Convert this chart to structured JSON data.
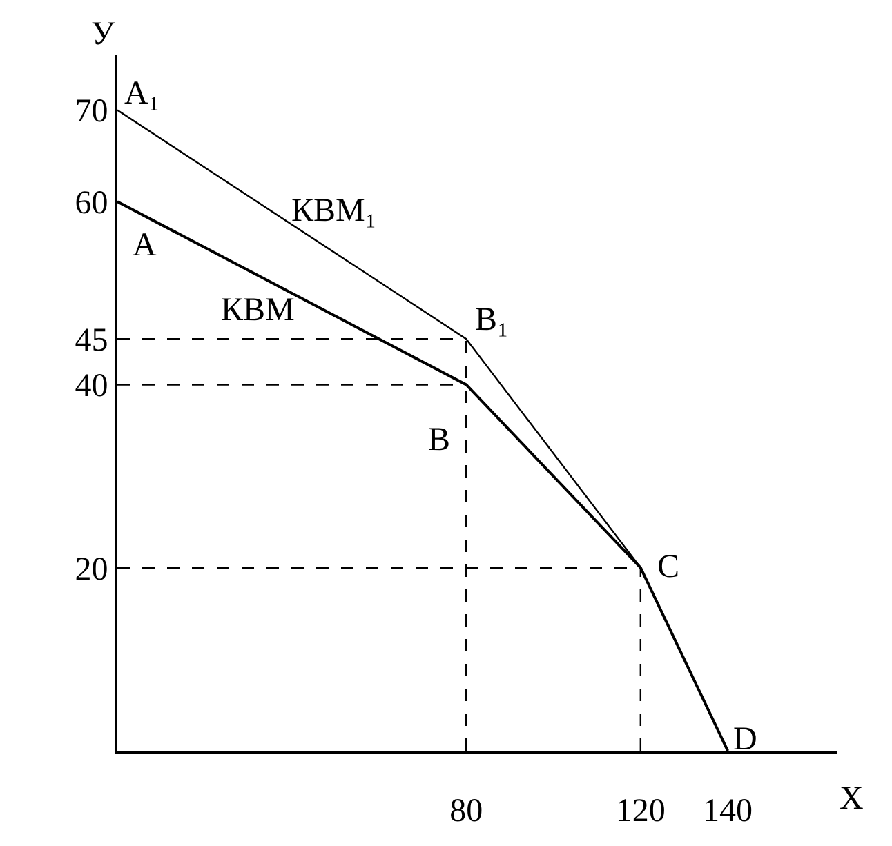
{
  "chart_data": {
    "type": "line",
    "xlabel": "X",
    "ylabel": "У",
    "xlim": [
      0,
      165
    ],
    "ylim": [
      0,
      76
    ],
    "xticks": [
      80,
      120,
      140
    ],
    "yticks": [
      20,
      40,
      45,
      60,
      70
    ],
    "legend": false,
    "marker": "none",
    "series": [
      {
        "name": "КВМ",
        "color": "#000000",
        "x": [
          0,
          80,
          120,
          140
        ],
        "values": [
          60,
          40,
          20,
          0
        ],
        "line_style": "solid"
      },
      {
        "name": "КВМ₁",
        "color": "#000000",
        "x": [
          0,
          80,
          120,
          140
        ],
        "values": [
          70,
          45,
          20,
          0
        ],
        "line_style": "solid"
      },
      {
        "color": "#000000",
        "x": [
          0,
          80
        ],
        "values": [
          45,
          45
        ],
        "line_style": "dashed"
      },
      {
        "color": "#000000",
        "x": [
          0,
          80
        ],
        "values": [
          40,
          40
        ],
        "line_style": "dashed"
      },
      {
        "color": "#000000",
        "x": [
          0,
          120
        ],
        "values": [
          20,
          20
        ],
        "line_style": "dashed"
      },
      {
        "color": "#000000",
        "x": [
          80,
          80
        ],
        "values": [
          0,
          45
        ],
        "line_style": "dashed"
      },
      {
        "color": "#000000",
        "x": [
          120,
          120
        ],
        "values": [
          0,
          20
        ],
        "line_style": "dashed"
      }
    ],
    "annotations": [
      {
        "text": "A₁",
        "x": 0,
        "y": 70
      },
      {
        "text": "A",
        "x": 0,
        "y": 60
      },
      {
        "text": "B₁",
        "x": 80,
        "y": 45
      },
      {
        "text": "B",
        "x": 80,
        "y": 40
      },
      {
        "text": "C",
        "x": 120,
        "y": 20
      },
      {
        "text": "D",
        "x": 140,
        "y": 0
      }
    ]
  }
}
